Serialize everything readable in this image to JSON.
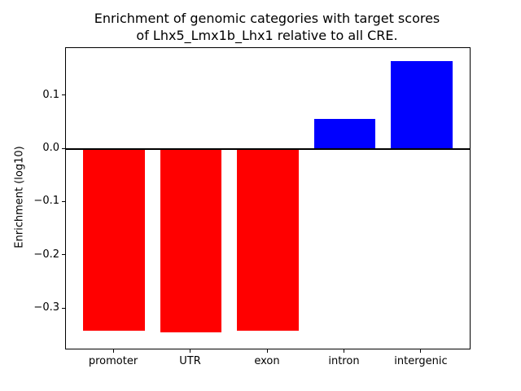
{
  "chart_data": {
    "type": "bar",
    "title": "Enrichment of genomic categories with target scores\nof Lhx5_Lmx1b_Lhx1 relative to all CRE.",
    "xlabel": "",
    "ylabel": "Enrichment (log10)",
    "categories": [
      "promoter",
      "UTR",
      "exon",
      "intron",
      "intergenic"
    ],
    "values": [
      -0.342,
      -0.345,
      -0.342,
      0.057,
      0.165
    ],
    "positive_color": "#0000ff",
    "negative_color": "#ff0000",
    "bar_width": 0.8,
    "xlim": [
      -0.625,
      4.625
    ],
    "ylim": [
      -0.375,
      0.19
    ],
    "yticks": [
      {
        "value": 0.1,
        "label": "0.1"
      },
      {
        "value": 0.0,
        "label": "0.0"
      },
      {
        "value": -0.1,
        "label": "−0.1"
      },
      {
        "value": -0.2,
        "label": "−0.2"
      },
      {
        "value": -0.3,
        "label": "−0.3"
      }
    ],
    "zero_line": true,
    "grid": false,
    "legend": null
  }
}
